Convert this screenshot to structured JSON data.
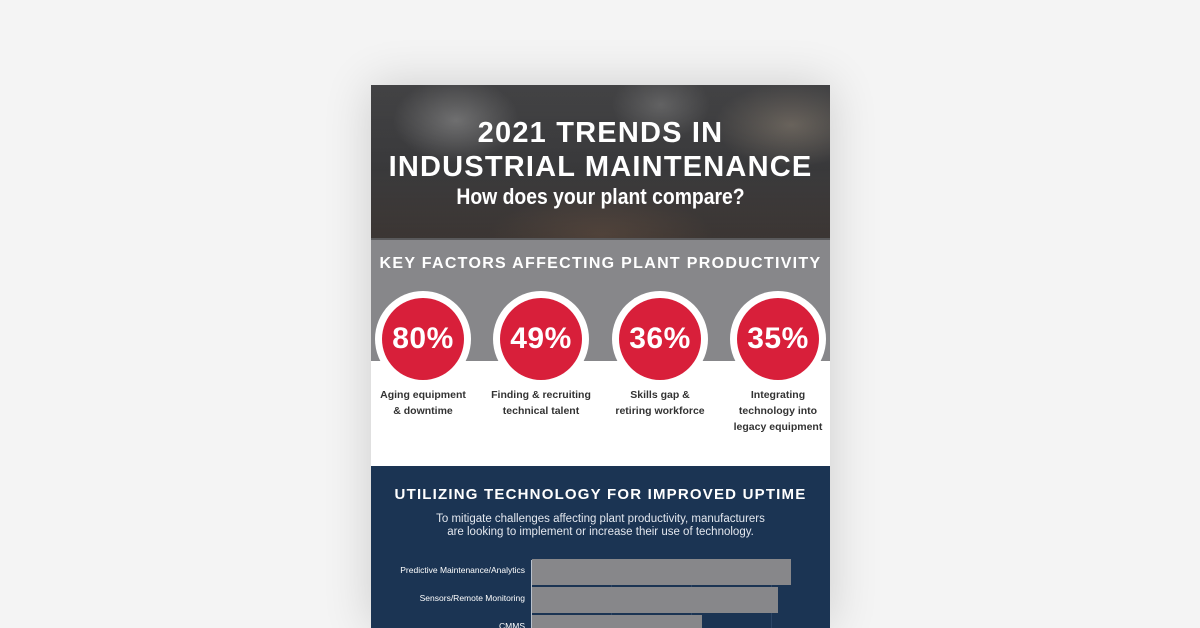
{
  "hero": {
    "title_line1": "2021 TRENDS IN",
    "title_line2": "INDUSTRIAL MAINTENANCE",
    "subtitle": "How does your plant compare?"
  },
  "key_factors": {
    "title": "KEY FACTORS AFFECTING PLANT PRODUCTIVITY",
    "stats": [
      {
        "value": "80%",
        "label_line1": "Aging equipment",
        "label_line2": "& downtime",
        "label_line3": ""
      },
      {
        "value": "49%",
        "label_line1": "Finding & recruiting",
        "label_line2": "technical talent",
        "label_line3": ""
      },
      {
        "value": "36%",
        "label_line1": "Skills gap &",
        "label_line2": "retiring workforce",
        "label_line3": ""
      },
      {
        "value": "35%",
        "label_line1": "Integrating",
        "label_line2": "technology into",
        "label_line3": "legacy equipment"
      }
    ],
    "accent_color": "#d81f3a"
  },
  "technology": {
    "title": "UTILIZING TECHNOLOGY FOR IMPROVED UPTIME",
    "desc_line1": "To mitigate challenges affecting plant productivity, manufacturers",
    "desc_line2": "are looking to implement or increase their use of technology.",
    "background_color": "#1b3453"
  },
  "chart_data": {
    "type": "bar",
    "orientation": "horizontal",
    "categories": [
      "Predictive Maintenance/Analytics",
      "Sensors/Remote Monitoring",
      "CMMS"
    ],
    "values": [
      0.96,
      0.91,
      0.63
    ],
    "bar_color": "#87878a"
  }
}
